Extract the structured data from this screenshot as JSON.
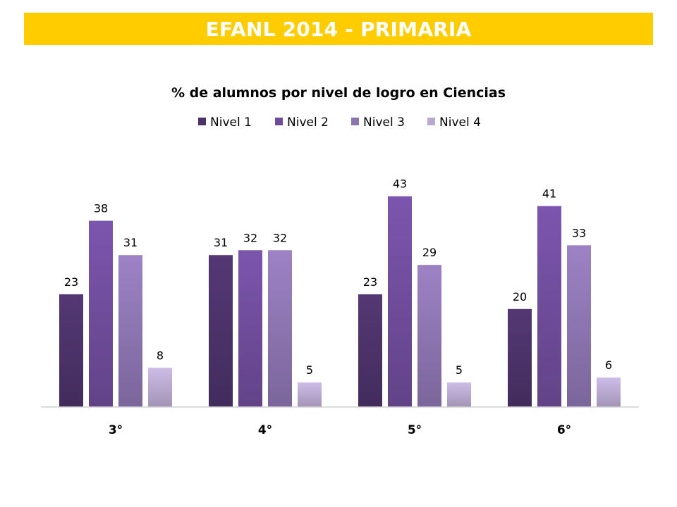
{
  "header": {
    "title": "EFANL 2014 - PRIMARIA"
  },
  "colors": {
    "banner": "#ffcc00",
    "banner_text": "#ffffff"
  },
  "chart_data": {
    "type": "bar",
    "title": "% de alumnos por nivel de logro en Ciencias",
    "xlabel": "",
    "ylabel": "",
    "categories": [
      "3°",
      "4°",
      "5°",
      "6°"
    ],
    "series": [
      {
        "name": "Nivel 1",
        "color": "#4b3268",
        "values": [
          23,
          31,
          23,
          20
        ]
      },
      {
        "name": "Nivel 2",
        "color": "#6f4c9b",
        "values": [
          38,
          32,
          43,
          41
        ]
      },
      {
        "name": "Nivel 3",
        "color": "#8c74b0",
        "values": [
          31,
          32,
          29,
          33
        ]
      },
      {
        "name": "Nivel 4",
        "color": "#b8a8cf",
        "values": [
          8,
          5,
          5,
          6
        ]
      }
    ],
    "ylim": [
      0,
      50
    ],
    "grid": false,
    "legend_position": "top"
  }
}
